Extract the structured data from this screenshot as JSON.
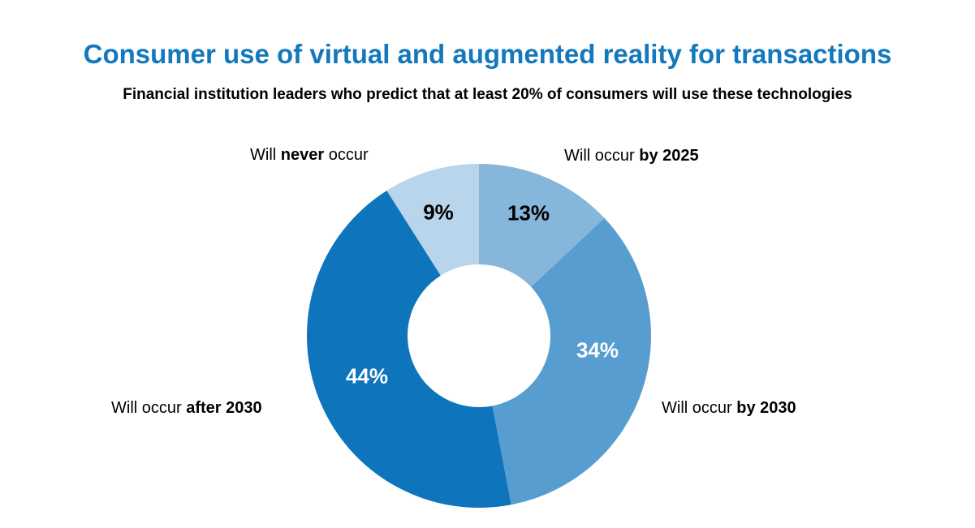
{
  "title": "Consumer use of virtual and augmented reality for transactions",
  "subtitle": "Financial institution leaders who predict that at least 20% of consumers will use these technologies",
  "title_color": "#1478bd",
  "chart_data": {
    "type": "pie",
    "subtype": "donut",
    "title": "Consumer use of virtual and augmented reality for transactions",
    "subtitle": "Financial institution leaders who predict that at least 20% of consumers will use these technologies",
    "start_angle_deg": 0,
    "direction": "clockwise",
    "legend_position": "labels-around-slices",
    "slices": [
      {
        "label": "Will occur by 2025",
        "value": 13,
        "pct_label": "13%",
        "color": "#87b6db",
        "pct_text_color": "#000000",
        "label_parts": {
          "pre": "Will occur ",
          "bold": "by 2025",
          "post": ""
        }
      },
      {
        "label": "Will occur by 2030",
        "value": 34,
        "pct_label": "34%",
        "color": "#579dcf",
        "pct_text_color": "#ffffff",
        "label_parts": {
          "pre": "Will occur ",
          "bold": "by 2030",
          "post": ""
        }
      },
      {
        "label": "Will occur after 2030",
        "value": 44,
        "pct_label": "44%",
        "color": "#0e74bc",
        "pct_text_color": "#ffffff",
        "label_parts": {
          "pre": "Will occur ",
          "bold": "after 2030",
          "post": ""
        }
      },
      {
        "label": "Will never occur",
        "value": 9,
        "pct_label": "9%",
        "color": "#b9d5eb",
        "pct_text_color": "#000000",
        "label_parts": {
          "pre": "Will ",
          "bold": "never",
          "post": " occur"
        }
      }
    ]
  }
}
